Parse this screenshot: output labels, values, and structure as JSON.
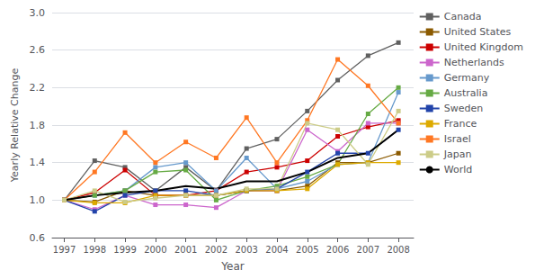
{
  "chart_data": {
    "type": "line",
    "x": [
      1997,
      1998,
      1999,
      2000,
      2001,
      2002,
      2003,
      2004,
      2005,
      2006,
      2007,
      2008
    ],
    "xlim": [
      1996.6,
      2008.5
    ],
    "xticks": [
      1997,
      1998,
      1999,
      2000,
      2001,
      2002,
      2003,
      2004,
      2005,
      2006,
      2007,
      2008
    ],
    "ylim": [
      0.6,
      3.0
    ],
    "yticks": [
      0.6,
      {
        "value": 1.0,
        "label": "1.0"
      },
      1.4,
      1.8,
      2.2,
      2.6,
      {
        "value": 3.0,
        "label": "3.0"
      }
    ],
    "xlabel": "Year",
    "ylabel": "Yearly Relative Change",
    "grid": true,
    "legend": "right",
    "series": [
      {
        "name": "Canada",
        "color": "#606060",
        "marker": "square",
        "values": [
          1.0,
          1.42,
          1.35,
          1.1,
          1.35,
          1.1,
          1.55,
          1.65,
          1.95,
          2.28,
          2.54,
          2.68
        ]
      },
      {
        "name": "United States",
        "color": "#8B5A00",
        "marker": "square",
        "values": [
          1.0,
          0.98,
          1.1,
          1.05,
          1.05,
          1.05,
          1.1,
          1.1,
          1.15,
          1.4,
          1.4,
          1.5
        ]
      },
      {
        "name": "United Kingdom",
        "color": "#cc0000",
        "marker": "square",
        "values": [
          1.0,
          1.08,
          1.32,
          1.05,
          1.05,
          1.1,
          1.3,
          1.35,
          1.42,
          1.68,
          1.78,
          1.85
        ]
      },
      {
        "name": "Netherlands",
        "color": "#cc66cc",
        "marker": "square",
        "values": [
          1.0,
          0.9,
          1.05,
          0.95,
          0.95,
          0.92,
          1.1,
          1.1,
          1.75,
          1.52,
          1.82,
          1.82
        ]
      },
      {
        "name": "Germany",
        "color": "#6699cc",
        "marker": "square",
        "values": [
          1.0,
          1.05,
          1.1,
          1.35,
          1.4,
          1.1,
          1.45,
          1.12,
          1.2,
          1.38,
          1.4,
          2.15
        ]
      },
      {
        "name": "Australia",
        "color": "#66aa44",
        "marker": "square",
        "values": [
          1.0,
          1.05,
          1.1,
          1.3,
          1.32,
          1.0,
          1.1,
          1.15,
          1.25,
          1.38,
          1.92,
          2.2
        ]
      },
      {
        "name": "Sweden",
        "color": "#2244aa",
        "marker": "square",
        "values": [
          1.0,
          0.88,
          1.05,
          1.1,
          1.1,
          1.05,
          1.1,
          1.12,
          1.3,
          1.5,
          1.5,
          1.75
        ]
      },
      {
        "name": "France",
        "color": "#ddaa00",
        "marker": "square",
        "values": [
          1.0,
          0.97,
          0.97,
          1.05,
          1.05,
          1.05,
          1.1,
          1.1,
          1.12,
          1.38,
          1.4,
          1.4
        ]
      },
      {
        "name": "Israel",
        "color": "#ff7722",
        "marker": "square",
        "values": [
          1.0,
          1.3,
          1.72,
          1.4,
          1.62,
          1.45,
          1.88,
          1.4,
          1.85,
          2.5,
          2.22,
          1.82
        ]
      },
      {
        "name": "Japan",
        "color": "#cccc88",
        "marker": "square",
        "values": [
          1.0,
          1.1,
          0.98,
          1.02,
          1.05,
          1.05,
          1.12,
          1.12,
          1.82,
          1.75,
          1.38,
          1.95
        ]
      },
      {
        "name": "World",
        "color": "#000000",
        "values": [
          1.0,
          1.05,
          1.08,
          1.1,
          1.15,
          1.12,
          1.2,
          1.2,
          1.3,
          1.45,
          1.5,
          1.75
        ]
      }
    ]
  }
}
